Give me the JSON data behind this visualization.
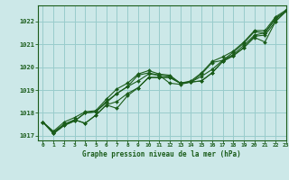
{
  "title": "Graphe pression niveau de la mer (hPa)",
  "background_color": "#cce8e8",
  "grid_color": "#99cccc",
  "line_color": "#1a5c1a",
  "marker_color": "#1a5c1a",
  "xlim": [
    -0.5,
    23
  ],
  "ylim": [
    1016.8,
    1022.7
  ],
  "yticks": [
    1017,
    1018,
    1019,
    1020,
    1021,
    1022
  ],
  "xticks": [
    0,
    1,
    2,
    3,
    4,
    5,
    6,
    7,
    8,
    9,
    10,
    11,
    12,
    13,
    14,
    15,
    16,
    17,
    18,
    19,
    20,
    21,
    22,
    23
  ],
  "series": [
    [
      1017.6,
      1017.15,
      1017.5,
      1017.7,
      1017.55,
      1017.9,
      1018.35,
      1018.5,
      1018.85,
      1019.1,
      1019.55,
      1019.55,
      1019.55,
      1019.3,
      1019.35,
      1019.4,
      1019.75,
      1020.25,
      1020.5,
      1020.85,
      1021.3,
      1021.1,
      1022.0,
      1022.45
    ],
    [
      1017.6,
      1017.15,
      1017.5,
      1017.7,
      1017.55,
      1017.9,
      1018.35,
      1018.2,
      1018.75,
      1019.1,
      1019.55,
      1019.55,
      1019.55,
      1019.3,
      1019.35,
      1019.4,
      1019.75,
      1020.25,
      1020.5,
      1020.85,
      1021.35,
      1021.4,
      1022.0,
      1022.45
    ],
    [
      1017.6,
      1017.1,
      1017.45,
      1017.65,
      1018.0,
      1018.05,
      1018.45,
      1018.85,
      1019.15,
      1019.4,
      1019.7,
      1019.65,
      1019.6,
      1019.3,
      1019.35,
      1019.6,
      1019.9,
      1020.3,
      1020.55,
      1020.95,
      1021.4,
      1021.5,
      1022.1,
      1022.45
    ],
    [
      1017.6,
      1017.1,
      1017.45,
      1017.65,
      1018.0,
      1018.05,
      1018.5,
      1018.85,
      1019.15,
      1019.65,
      1019.75,
      1019.65,
      1019.3,
      1019.25,
      1019.35,
      1019.7,
      1020.2,
      1020.3,
      1020.65,
      1021.05,
      1021.55,
      1021.5,
      1022.15,
      1022.45
    ]
  ],
  "series_upper": [
    1017.6,
    1017.2,
    1017.6,
    1017.8,
    1018.05,
    1018.1,
    1018.6,
    1019.05,
    1019.3,
    1019.7,
    1019.85,
    1019.7,
    1019.65,
    1019.3,
    1019.4,
    1019.75,
    1020.25,
    1020.45,
    1020.7,
    1021.1,
    1021.6,
    1021.6,
    1022.2,
    1022.5
  ]
}
